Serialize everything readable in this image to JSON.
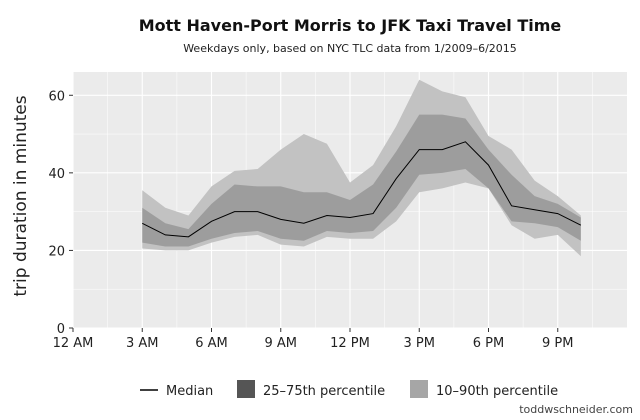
{
  "chart_data": {
    "type": "area",
    "title": "Mott Haven-Port Morris to JFK Taxi Travel Time",
    "subtitle": "Weekdays only, based on NYC TLC data from 1/2009–6/2015",
    "xlabel": "",
    "ylabel": "trip duration in minutes",
    "xlim": [
      0,
      24
    ],
    "ylim": [
      0,
      66
    ],
    "x_ticks": [
      0,
      3,
      6,
      9,
      12,
      15,
      18,
      21
    ],
    "x_tick_labels": [
      "12 AM",
      "3 AM",
      "6 AM",
      "9 AM",
      "12 PM",
      "3 PM",
      "6 PM",
      "9 PM"
    ],
    "y_ticks": [
      0,
      20,
      40,
      60
    ],
    "y_tick_labels": [
      "0",
      "20",
      "40",
      "60"
    ],
    "grid": true,
    "legend_position": "bottom",
    "x": [
      3,
      4,
      5,
      6,
      7,
      8,
      9,
      10,
      11,
      12,
      13,
      14,
      15,
      16,
      17,
      18,
      19,
      20,
      21,
      22
    ],
    "series": [
      {
        "name": "Median",
        "values": [
          27,
          24,
          23.5,
          27.5,
          30,
          30,
          28,
          27,
          29,
          28.5,
          29.5,
          38.5,
          46,
          46,
          48,
          42,
          31.5,
          30.5,
          29.5,
          26.5
        ]
      },
      {
        "name": "25–75th percentile",
        "low": [
          22,
          21,
          21,
          23,
          24.5,
          25,
          23,
          22.5,
          25,
          24.5,
          25,
          31,
          39.5,
          40,
          41,
          36,
          27.5,
          27,
          26,
          22.5
        ],
        "high": [
          31,
          27,
          25.5,
          32,
          37,
          36.5,
          36.5,
          35,
          35,
          33,
          37,
          45.5,
          55,
          55,
          54,
          46,
          39.5,
          34,
          32,
          28.5
        ]
      },
      {
        "name": "10–90th percentile",
        "low": [
          20.5,
          20,
          20,
          22,
          23.5,
          24,
          21.5,
          21,
          23.5,
          23,
          23,
          27.5,
          35,
          36,
          37.5,
          36,
          26.5,
          23,
          24,
          18.5
        ],
        "high": [
          35.5,
          31,
          29,
          36.5,
          40.5,
          41,
          46,
          50,
          47.5,
          37.5,
          42,
          52,
          64,
          61,
          59.5,
          49.5,
          46,
          38,
          34,
          29
        ]
      }
    ],
    "colors": {
      "panel_bg": "#ebebeb",
      "grid": "#ffffff",
      "band_outer": "#c2c2c2",
      "band_inner": "#7f7f7f",
      "median": "#000000",
      "legend_outer": "#a6a6a6",
      "legend_inner": "#555555"
    }
  },
  "legend": {
    "median_label": "Median",
    "inner_label": "25–75th percentile",
    "outer_label": "10–90th percentile"
  },
  "credit": "toddwschneider.com"
}
